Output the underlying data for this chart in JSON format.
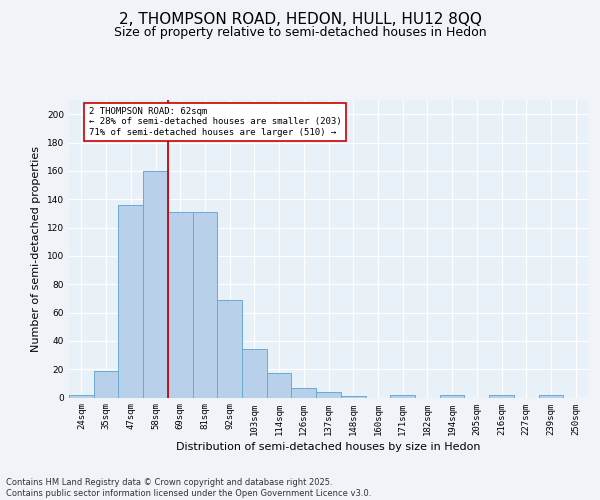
{
  "title_line1": "2, THOMPSON ROAD, HEDON, HULL, HU12 8QQ",
  "title_line2": "Size of property relative to semi-detached houses in Hedon",
  "xlabel": "Distribution of semi-detached houses by size in Hedon",
  "ylabel": "Number of semi-detached properties",
  "bins": [
    "24sqm",
    "35sqm",
    "47sqm",
    "58sqm",
    "69sqm",
    "81sqm",
    "92sqm",
    "103sqm",
    "114sqm",
    "126sqm",
    "137sqm",
    "148sqm",
    "160sqm",
    "171sqm",
    "182sqm",
    "194sqm",
    "205sqm",
    "216sqm",
    "227sqm",
    "239sqm",
    "250sqm"
  ],
  "values": [
    2,
    19,
    136,
    160,
    131,
    131,
    69,
    34,
    17,
    7,
    4,
    1,
    0,
    2,
    0,
    2,
    0,
    2,
    0,
    2,
    0
  ],
  "bar_color": "#b8d0ea",
  "bar_edge_color": "#6aaad4",
  "background_color": "#e8f0f8",
  "grid_color": "#ffffff",
  "vline_color": "#cc0000",
  "vline_x_index": 3.5,
  "annotation_box_text": "2 THOMPSON ROAD: 62sqm\n← 28% of semi-detached houses are smaller (203)\n71% of semi-detached houses are larger (510) →",
  "annotation_box_edgecolor": "#cc0000",
  "annotation_box_facecolor": "#ffffff",
  "ylim": [
    0,
    210
  ],
  "yticks": [
    0,
    20,
    40,
    60,
    80,
    100,
    120,
    140,
    160,
    180,
    200
  ],
  "fig_bg": "#f0f4f8",
  "footer_text": "Contains HM Land Registry data © Crown copyright and database right 2025.\nContains public sector information licensed under the Open Government Licence v3.0.",
  "title_fontsize": 11,
  "subtitle_fontsize": 9,
  "tick_fontsize": 6.5,
  "axis_label_fontsize": 8,
  "footer_fontsize": 6
}
